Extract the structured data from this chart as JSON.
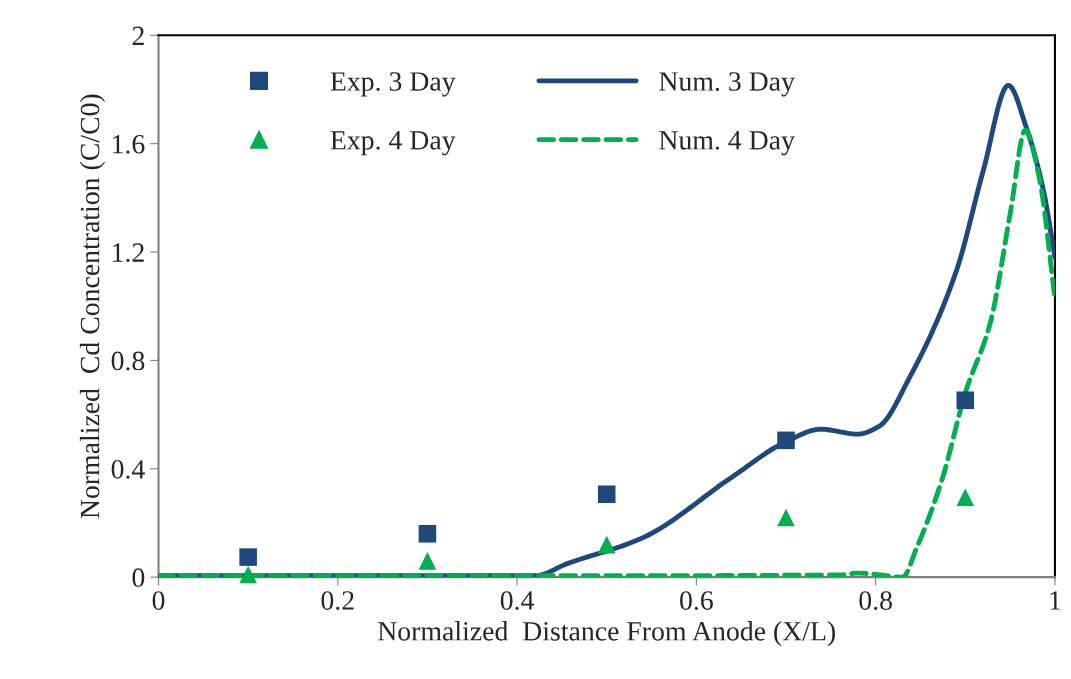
{
  "chart_data": {
    "type": "scatter",
    "xlabel": "Normalized  Distance From Anode (X/L)",
    "ylabel": "Normalized  Cd Concentration (C/C0)",
    "xlim": [
      0,
      1
    ],
    "xticks": [
      0,
      0.2,
      0.4,
      0.6,
      0.8,
      1
    ],
    "ylim": [
      0,
      2
    ],
    "yticks": [
      0,
      0.4,
      0.8,
      1.2,
      1.6,
      2
    ],
    "grid": false,
    "legend": "top left",
    "series": [
      {
        "name": "Exp. 3 Day",
        "marker": "square",
        "color": "#1f497d",
        "x": [
          0.1,
          0.3,
          0.5,
          0.7,
          0.9
        ],
        "values": [
          0.074,
          0.16,
          0.306,
          0.505,
          0.653
        ]
      },
      {
        "name": "Num. 3 Day",
        "type": "line",
        "line_style": "solid",
        "color": "#1f497d",
        "x": [
          0,
          0.2,
          0.42,
          0.456,
          0.54,
          0.64,
          0.7,
          0.739,
          0.78,
          0.804,
          0.838,
          0.89,
          0.92,
          0.948,
          0.969,
          0.987,
          1.0
        ],
        "values": [
          0.005,
          0.005,
          0.005,
          0.05,
          0.145,
          0.37,
          0.5,
          0.546,
          0.528,
          0.557,
          0.738,
          1.13,
          1.5,
          1.815,
          1.65,
          1.43,
          1.18
        ]
      },
      {
        "name": "Exp. 4 Day",
        "marker": "triangle",
        "color": "#00b050",
        "x": [
          0.1,
          0.3,
          0.5,
          0.7,
          0.9
        ],
        "values": [
          0.01,
          0.06,
          0.12,
          0.22,
          0.295
        ]
      },
      {
        "name": "Num. 4 Day",
        "type": "line",
        "line_style": "dashed",
        "color": "#00b050",
        "x": [
          0,
          0.4,
          0.76,
          0.78,
          0.8,
          0.83,
          0.846,
          0.874,
          0.9,
          0.928,
          0.95,
          0.967,
          0.983,
          1.0
        ],
        "values": [
          0.005,
          0.005,
          0.008,
          0.015,
          0.01,
          0.0,
          0.11,
          0.36,
          0.68,
          0.94,
          1.34,
          1.65,
          1.465,
          1.03
        ]
      }
    ]
  }
}
